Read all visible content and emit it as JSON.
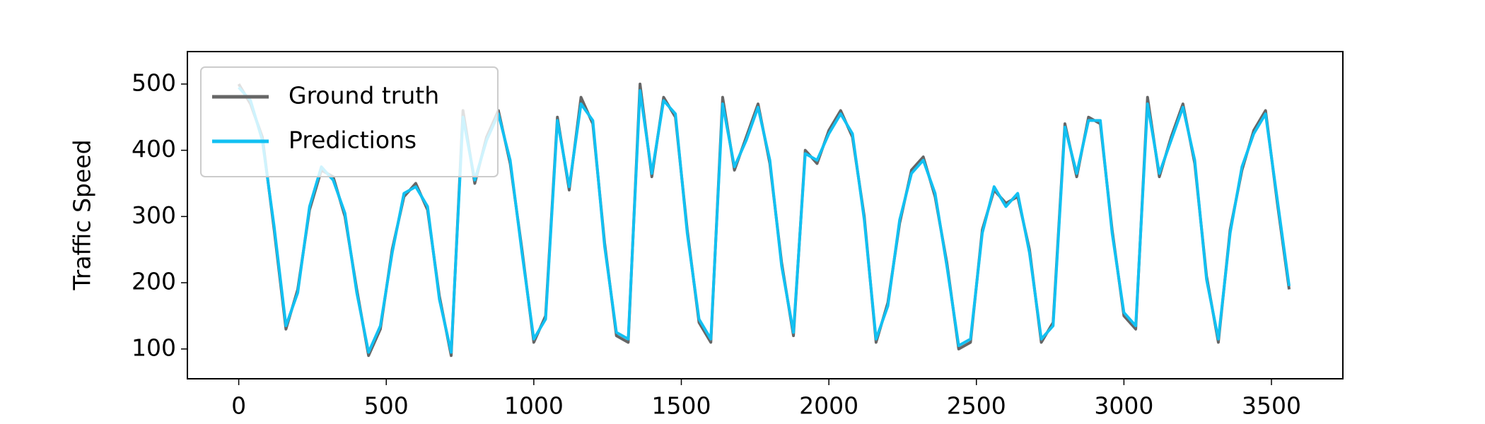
{
  "chart_data": {
    "type": "line",
    "y_label": "Traffic Speed",
    "x": [
      0,
      40,
      80,
      120,
      160,
      200,
      240,
      280,
      320,
      360,
      400,
      440,
      480,
      520,
      560,
      600,
      640,
      680,
      720,
      760,
      800,
      840,
      880,
      920,
      960,
      1000,
      1040,
      1080,
      1120,
      1160,
      1200,
      1240,
      1280,
      1320,
      1360,
      1400,
      1440,
      1480,
      1520,
      1560,
      1600,
      1640,
      1680,
      1720,
      1760,
      1800,
      1840,
      1880,
      1920,
      1960,
      2000,
      2040,
      2080,
      2120,
      2160,
      2200,
      2240,
      2280,
      2320,
      2360,
      2400,
      2440,
      2480,
      2520,
      2560,
      2600,
      2640,
      2680,
      2720,
      2760,
      2800,
      2840,
      2880,
      2920,
      2960,
      3000,
      3040,
      3080,
      3120,
      3160,
      3200,
      3240,
      3280,
      3320,
      3360,
      3400,
      3440,
      3480,
      3520,
      3560
    ],
    "series": [
      {
        "name": "Ground truth",
        "color": "#666666",
        "values": [
          500,
          470,
          420,
          280,
          130,
          190,
          310,
          370,
          360,
          300,
          190,
          90,
          130,
          250,
          330,
          350,
          310,
          180,
          90,
          460,
          350,
          420,
          460,
          380,
          250,
          110,
          150,
          450,
          340,
          480,
          440,
          260,
          120,
          110,
          500,
          360,
          480,
          450,
          280,
          140,
          110,
          480,
          370,
          420,
          470,
          380,
          230,
          120,
          400,
          380,
          430,
          460,
          420,
          300,
          110,
          170,
          290,
          370,
          390,
          330,
          230,
          100,
          110,
          280,
          340,
          320,
          330,
          250,
          110,
          140,
          440,
          360,
          450,
          440,
          280,
          150,
          130,
          480,
          360,
          420,
          470,
          380,
          210,
          110,
          280,
          370,
          430,
          460,
          320,
          190
        ]
      },
      {
        "name": "Predictions",
        "color": "#12c0f2",
        "values": [
          495,
          475,
          415,
          285,
          135,
          185,
          315,
          375,
          355,
          305,
          185,
          95,
          135,
          245,
          335,
          345,
          315,
          175,
          95,
          450,
          355,
          415,
          455,
          385,
          245,
          115,
          145,
          445,
          345,
          470,
          445,
          255,
          125,
          115,
          490,
          365,
          475,
          455,
          275,
          145,
          115,
          470,
          375,
          415,
          465,
          385,
          225,
          125,
          395,
          385,
          425,
          455,
          425,
          295,
          115,
          165,
          295,
          365,
          385,
          335,
          225,
          105,
          115,
          275,
          345,
          315,
          335,
          245,
          115,
          135,
          435,
          365,
          445,
          445,
          275,
          155,
          135,
          470,
          365,
          415,
          465,
          385,
          205,
          115,
          275,
          375,
          425,
          455,
          325,
          195
        ]
      }
    ],
    "xlim": [
      -174,
      3742
    ],
    "ylim": [
      55,
      549
    ],
    "xticks": [
      0,
      500,
      1000,
      1500,
      2000,
      2500,
      3000,
      3500
    ],
    "yticks": [
      100,
      200,
      300,
      400,
      500
    ],
    "legend": "upper left",
    "grid": false
  }
}
